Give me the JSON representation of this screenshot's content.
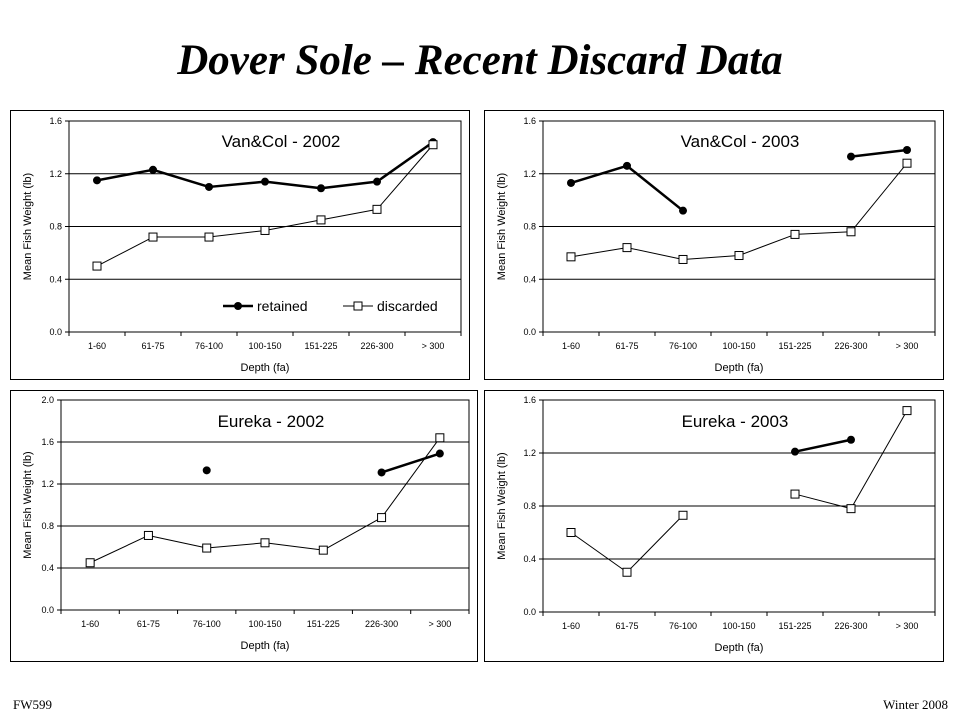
{
  "title": "Dover Sole – Recent Discard Data",
  "footer": {
    "left": "FW599",
    "right": "Winter 2008"
  },
  "chart_data": [
    {
      "type": "line",
      "title": "Van&Col - 2002",
      "xlabel": "Depth (fa)",
      "ylabel": "Mean Fish Weight (lb)",
      "categories": [
        "1-60",
        "61-75",
        "76-100",
        "100-150",
        "151-225",
        "226-300",
        "> 300"
      ],
      "ylim": [
        0,
        1.6
      ],
      "yticks": [
        "0.0",
        "0.4",
        "0.8",
        "1.2",
        "1.6"
      ],
      "legend": "bottom-right",
      "series": [
        {
          "name": "retained",
          "marker": "filled-circle",
          "values": [
            1.15,
            1.23,
            1.1,
            1.14,
            1.09,
            1.14,
            1.44
          ]
        },
        {
          "name": "discarded",
          "marker": "open-square",
          "values": [
            0.5,
            0.72,
            0.72,
            0.77,
            0.85,
            0.93,
            1.42
          ]
        }
      ]
    },
    {
      "type": "line",
      "title": "Van&Col - 2003",
      "xlabel": "Depth (fa)",
      "ylabel": "Mean Fish Weight (lb)",
      "categories": [
        "1-60",
        "61-75",
        "76-100",
        "100-150",
        "151-225",
        "226-300",
        "> 300"
      ],
      "ylim": [
        0,
        1.6
      ],
      "yticks": [
        "0.0",
        "0.4",
        "0.8",
        "1.2",
        "1.6"
      ],
      "series": [
        {
          "name": "retained",
          "marker": "filled-circle",
          "values": [
            1.13,
            1.26,
            0.92,
            null,
            null,
            1.33,
            1.38
          ]
        },
        {
          "name": "discarded",
          "marker": "open-square",
          "values": [
            0.57,
            0.64,
            0.55,
            0.58,
            0.74,
            0.76,
            1.28
          ]
        }
      ]
    },
    {
      "type": "line",
      "title": "Eureka - 2002",
      "xlabel": "Depth (fa)",
      "ylabel": "Mean Fish Weight (lb)",
      "categories": [
        "1-60",
        "61-75",
        "76-100",
        "100-150",
        "151-225",
        "226-300",
        "> 300"
      ],
      "ylim": [
        0,
        2.0
      ],
      "yticks": [
        "0.0",
        "0.4",
        "0.8",
        "1.2",
        "1.6",
        "2.0"
      ],
      "series": [
        {
          "name": "retained",
          "marker": "filled-circle",
          "values": [
            null,
            null,
            1.33,
            null,
            null,
            1.31,
            1.49
          ]
        },
        {
          "name": "discarded",
          "marker": "open-square",
          "values": [
            0.45,
            0.71,
            0.59,
            0.64,
            0.57,
            0.88,
            1.64
          ]
        }
      ]
    },
    {
      "type": "line",
      "title": "Eureka - 2003",
      "xlabel": "Depth (fa)",
      "ylabel": "Mean Fish Weight (lb)",
      "categories": [
        "1-60",
        "61-75",
        "76-100",
        "100-150",
        "151-225",
        "226-300",
        "> 300"
      ],
      "ylim": [
        0,
        1.6
      ],
      "yticks": [
        "0.0",
        "0.4",
        "0.8",
        "1.2",
        "1.6"
      ],
      "series": [
        {
          "name": "retained",
          "marker": "filled-circle",
          "values": [
            null,
            null,
            null,
            null,
            1.21,
            1.3,
            null
          ]
        },
        {
          "name": "discarded",
          "marker": "open-square",
          "values": [
            0.6,
            0.3,
            0.73,
            null,
            0.89,
            0.78,
            1.52
          ]
        }
      ]
    }
  ]
}
